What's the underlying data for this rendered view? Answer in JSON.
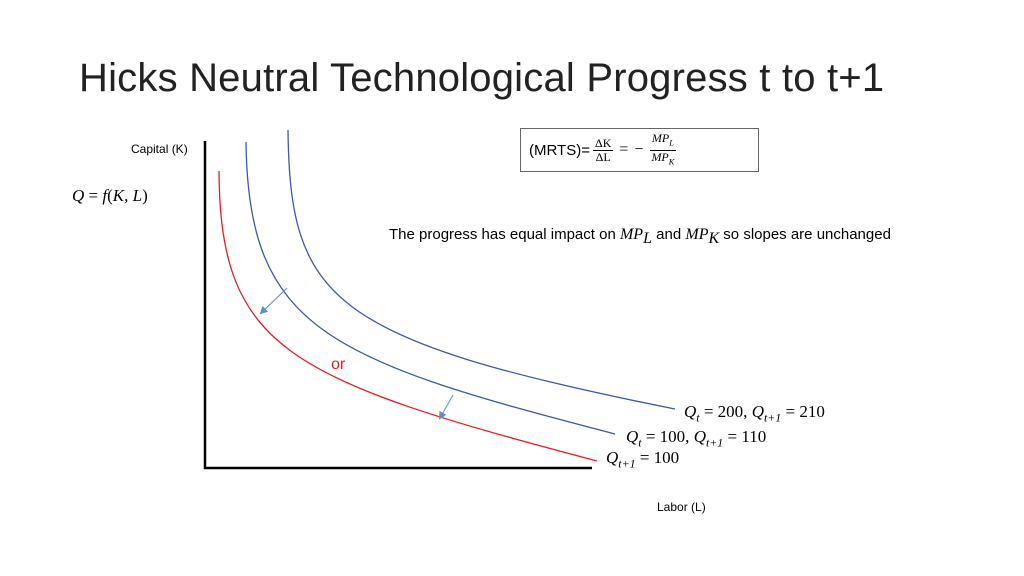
{
  "title": "Hicks Neutral Technological Progress t to t+1",
  "axes": {
    "y_label": "Capital (K)",
    "x_label": "Labor (L)"
  },
  "production_function": {
    "lhs": "Q",
    "eq": " = ",
    "f": "f",
    "open": "(",
    "args": "K, L",
    "close": ")"
  },
  "mrts_box": {
    "prefix": "(MRTS)=",
    "d_num": "ΔK",
    "d_den": "ΔL",
    "equals": "=",
    "minus": "−",
    "mp_num": "MP",
    "mp_num_sub": "L",
    "mp_den": "MP",
    "mp_den_sub": "K"
  },
  "note": {
    "part1": "The progress has equal impact on ",
    "mp1": "MP",
    "mp1_sub": "L",
    "part2": " and ",
    "mp2": "MP",
    "mp2_sub": "K",
    "part3": " so slopes are unchanged"
  },
  "or_label": "or",
  "curves": [
    {
      "id": "q200",
      "color": "#3b5ba5",
      "label": {
        "q1": "Q",
        "s1": "t",
        "v1": " = 200, ",
        "q2": "Q",
        "s2": "t+1",
        "v2": " = 210"
      }
    },
    {
      "id": "q100",
      "color": "#3b5ba5",
      "label": {
        "q1": "Q",
        "s1": "t",
        "v1": " = 100, ",
        "q2": "Q",
        "s2": "t+1",
        "v2": " = 110"
      }
    },
    {
      "id": "q100next",
      "color": "#e02020",
      "label": {
        "q1": "Q",
        "s1": "t+1",
        "v1": " = 100"
      }
    }
  ],
  "colors": {
    "axis": "#000000",
    "blue_curve": "#3b5ba5",
    "red_curve": "#e02020",
    "arrow": "#5b8fd0"
  }
}
